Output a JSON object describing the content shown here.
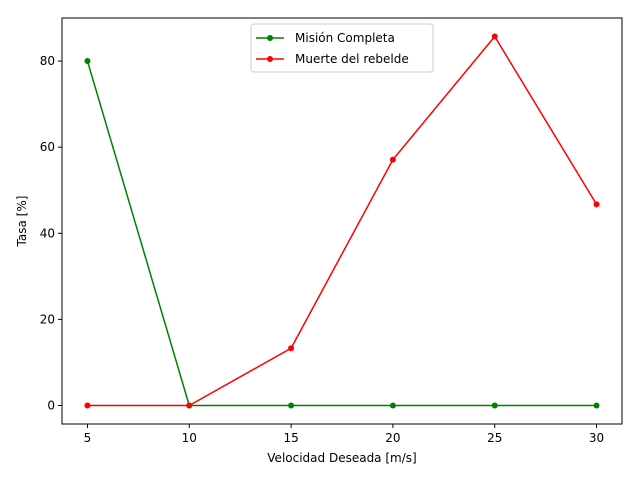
{
  "chart_data": {
    "type": "line",
    "title": "",
    "xlabel": "Velocidad Deseada [m/s]",
    "ylabel": "Tasa [%]",
    "x": [
      5,
      10,
      15,
      20,
      25,
      30
    ],
    "xlim": [
      3.75,
      31.25
    ],
    "ylim": [
      -4.3,
      90.0
    ],
    "xticks": [
      5,
      10,
      15,
      20,
      25,
      30
    ],
    "yticks": [
      0,
      20,
      40,
      60,
      80
    ],
    "grid": false,
    "legend_position": "upper center",
    "series": [
      {
        "name": "Misión Completa",
        "color": "#008000",
        "marker": "circle",
        "values": [
          80,
          0,
          0,
          0,
          0,
          0
        ]
      },
      {
        "name": "Muerte del rebelde",
        "color": "#ff0000",
        "marker": "circle",
        "values": [
          0,
          0,
          13.3,
          57.1,
          85.7,
          46.7
        ]
      }
    ]
  }
}
